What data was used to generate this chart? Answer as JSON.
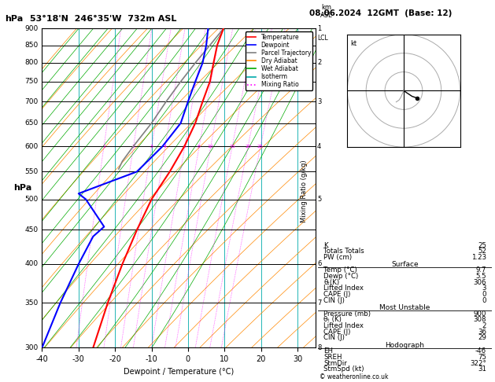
{
  "title_left": "53°18'N  246°35'W  732m ASL",
  "title_right": "08.06.2024  12GMT  (Base: 12)",
  "ylabel_left": "hPa",
  "xlabel": "Dewpoint / Temperature (°C)",
  "ylabel_mixing": "Mixing Ratio (g/kg)",
  "pres_levels": [
    300,
    350,
    400,
    450,
    500,
    550,
    600,
    650,
    700,
    750,
    800,
    850,
    900
  ],
  "temp_ticks": [
    -40,
    -30,
    -20,
    -10,
    0,
    10,
    20,
    30
  ],
  "km_pres": [
    900,
    800,
    700,
    600,
    500,
    400,
    350,
    300
  ],
  "km_vals": [
    1,
    2,
    3,
    4,
    5,
    6,
    7,
    8
  ],
  "lcl_pres": 870,
  "background_color": "#ffffff",
  "temp_color": "#ff0000",
  "dewp_color": "#0000ff",
  "parcel_color": "#808080",
  "dry_adiabat_color": "#ff8800",
  "wet_adiabat_color": "#00aa00",
  "isotherm_color": "#00aaaa",
  "mixing_ratio_color": "#ff00ff",
  "legend_items": [
    "Temperature",
    "Dewpoint",
    "Parcel Trajectory",
    "Dry Adiabat",
    "Wet Adiabat",
    "Isotherm",
    "Mixing Ratio"
  ],
  "legend_colors": [
    "#ff0000",
    "#0000ff",
    "#808080",
    "#ff8800",
    "#00aa00",
    "#00aaaa",
    "#ff00ff"
  ],
  "legend_styles": [
    "solid",
    "solid",
    "solid",
    "solid",
    "solid",
    "solid",
    "dotted"
  ],
  "temp_profile_p": [
    300,
    350,
    400,
    450,
    500,
    550,
    600,
    650,
    700,
    750,
    800,
    850,
    900
  ],
  "temp_profile_t": [
    -26,
    -22,
    -18,
    -14,
    -10,
    -5,
    -1,
    2,
    4,
    6,
    7,
    8,
    9.7
  ],
  "dewp_profile_p": [
    300,
    350,
    400,
    440,
    455,
    500,
    510,
    550,
    600,
    650,
    700,
    750,
    800,
    850,
    900
  ],
  "dewp_profile_t": [
    -40,
    -35,
    -30,
    -26,
    -23,
    -28,
    -30,
    -14,
    -7,
    -2,
    0,
    2,
    4,
    5,
    5.5
  ],
  "parcel_profile_p": [
    900,
    850,
    800,
    750,
    700,
    650,
    600,
    570,
    555
  ],
  "parcel_profile_t": [
    9.7,
    6,
    2,
    -2,
    -6,
    -10,
    -15,
    -18,
    -19
  ],
  "mixing_ratios": [
    1,
    2,
    3,
    4,
    6,
    8,
    10,
    15,
    20,
    25
  ],
  "K_index": 25,
  "Totals_Totals": 52,
  "PW_cm": 1.23,
  "surf_temp": 9.7,
  "surf_dewp": 5.5,
  "surf_theta_e": 306,
  "surf_lifted_index": 3,
  "surf_CAPE": 0,
  "surf_CIN": 0,
  "mu_pressure": 900,
  "mu_theta_e": 308,
  "mu_lifted_index": 2,
  "mu_CAPE": 36,
  "mu_CIN": 29,
  "hodo_EH": -46,
  "hodo_SREH": 75,
  "hodo_StmDir": 322,
  "hodo_StmSpd": 31,
  "copyright": "© weatheronline.co.uk"
}
